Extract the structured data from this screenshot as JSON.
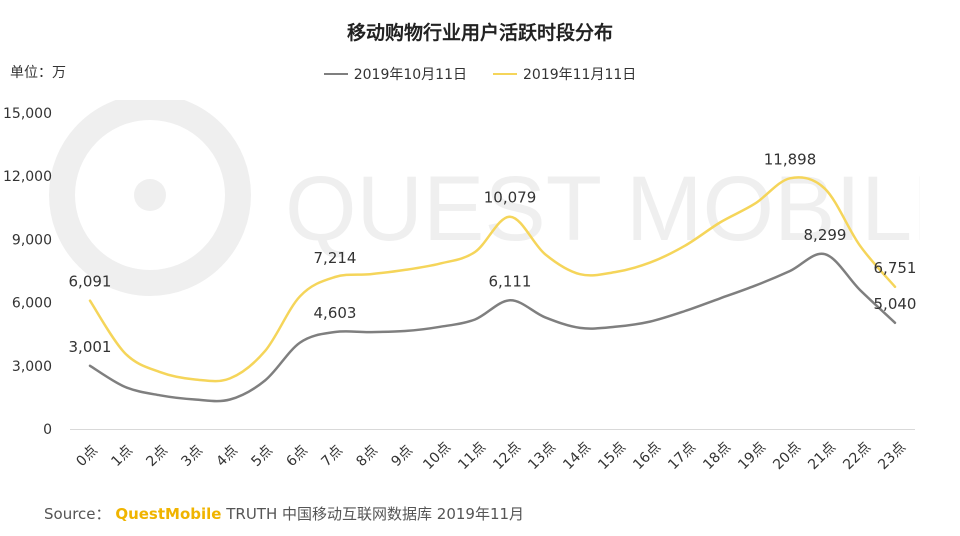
{
  "colors": {
    "oct": "#7f7f7f",
    "nov": "#f5d55a",
    "brand": "#f0b400",
    "axis": "#d9d9d9",
    "watermark": "#ececec"
  },
  "watermark_text": "QUEST MOBILE",
  "source": {
    "label": "Source：",
    "brand": "QuestMobile",
    "rest": "TRUTH 中国移动互联网数据库 2019年11月"
  },
  "chart_data": {
    "type": "line",
    "title": "移动购物行业用户活跃时段分布",
    "unit_label": "单位：万",
    "categories": [
      "0点",
      "1点",
      "2点",
      "3点",
      "4点",
      "5点",
      "6点",
      "7点",
      "8点",
      "9点",
      "10点",
      "11点",
      "12点",
      "13点",
      "14点",
      "15点",
      "16点",
      "17点",
      "18点",
      "19点",
      "20点",
      "21点",
      "22点",
      "23点"
    ],
    "ylim": [
      0,
      15000
    ],
    "yticks": [
      "0",
      "3,000",
      "6,000",
      "9,000",
      "12,000",
      "15,000"
    ],
    "legend_position": "top-center",
    "series": [
      {
        "name": "2019年10月11日",
        "color_key": "oct",
        "values": [
          3001,
          2000,
          1600,
          1400,
          1400,
          2300,
          4100,
          4603,
          4600,
          4650,
          4850,
          5200,
          6111,
          5300,
          4800,
          4850,
          5100,
          5600,
          6200,
          6800,
          7500,
          8299,
          6600,
          5040
        ],
        "labels": {
          "0": "3,001",
          "7": "4,603",
          "12": "6,111",
          "21": "8,299",
          "23": "5,040"
        }
      },
      {
        "name": "2019年11月11日",
        "color_key": "nov",
        "values": [
          6091,
          3600,
          2700,
          2350,
          2400,
          3700,
          6300,
          7214,
          7350,
          7550,
          7850,
          8400,
          10079,
          8300,
          7350,
          7450,
          7900,
          8700,
          9800,
          10700,
          11898,
          11400,
          8700,
          6751
        ],
        "labels": {
          "0": "6,091",
          "7": "7,214",
          "12": "10,079",
          "20": "11,898",
          "23": "6,751"
        }
      }
    ]
  }
}
